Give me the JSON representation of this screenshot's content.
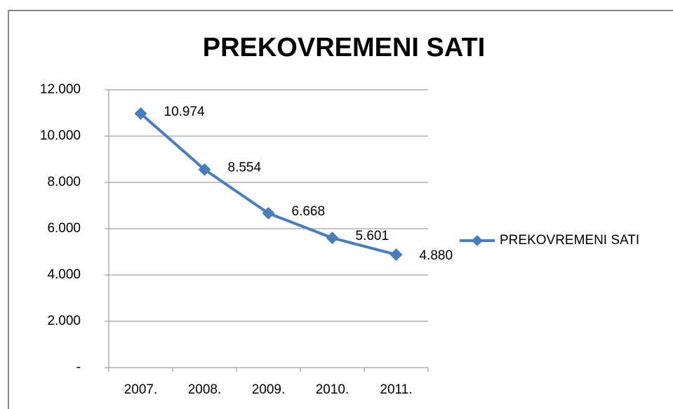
{
  "chart_data": {
    "type": "line",
    "title": "PREKOVREMENI SATI",
    "categories": [
      "2007.",
      "2008.",
      "2009.",
      "2010.",
      "2011."
    ],
    "series": [
      {
        "name": "PREKOVREMENI SATI",
        "color": "#4a7ebb",
        "values": [
          10974,
          8554,
          6668,
          5601,
          4880
        ],
        "value_labels": [
          "10.974",
          "8.554",
          "6.668",
          "5.601",
          "4.880"
        ]
      }
    ],
    "ylim": [
      0,
      12000
    ],
    "yticks": [
      {
        "value": 0,
        "label": "-"
      },
      {
        "value": 2000,
        "label": "2.000"
      },
      {
        "value": 4000,
        "label": "4.000"
      },
      {
        "value": 6000,
        "label": "6.000"
      },
      {
        "value": 8000,
        "label": "8.000"
      },
      {
        "value": 10000,
        "label": "10.000"
      },
      {
        "value": 12000,
        "label": "12.000"
      }
    ],
    "grid": true,
    "legend": "right"
  }
}
